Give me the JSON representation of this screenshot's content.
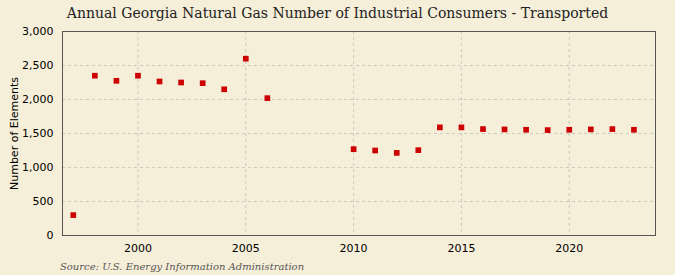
{
  "chart_data": {
    "type": "scatter",
    "title": "Annual Georgia Natural Gas Number of Industrial Consumers - Transported",
    "ylabel": "Number of Elements",
    "annotations": [
      "Source: U.S. Energy Information Administration"
    ],
    "x": [
      1997,
      1998,
      1999,
      2000,
      2001,
      2002,
      2003,
      2004,
      2005,
      2006,
      2010,
      2011,
      2012,
      2013,
      2014,
      2015,
      2016,
      2017,
      2018,
      2019,
      2020,
      2021,
      2022,
      2023
    ],
    "values": [
      300,
      2350,
      2275,
      2350,
      2265,
      2250,
      2240,
      2150,
      2600,
      2020,
      1270,
      1250,
      1215,
      1255,
      1590,
      1590,
      1565,
      1560,
      1555,
      1550,
      1555,
      1560,
      1565,
      1555
    ],
    "color": "#cc0000",
    "marker": "square",
    "xlim": [
      1996.5,
      2024
    ],
    "xticks": [
      2000,
      2005,
      2010,
      2015,
      2020
    ],
    "ylim": [
      0,
      3000
    ],
    "yticks": [
      0,
      500,
      {
        "value": 1000,
        "label": "1,000"
      },
      {
        "value": 1500,
        "label": "1,500"
      },
      {
        "value": 2000,
        "label": "2,000"
      },
      {
        "value": 2500,
        "label": "2,500"
      },
      {
        "value": 3000,
        "label": "3,000"
      }
    ],
    "grid": true
  }
}
